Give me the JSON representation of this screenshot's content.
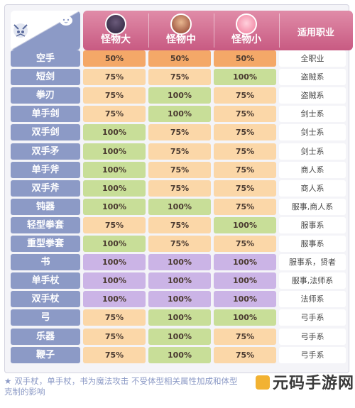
{
  "header": {
    "large_label": "怪物大",
    "medium_label": "怪物中",
    "small_label": "怪物小",
    "job_label": "适用职业"
  },
  "colors": {
    "orange": "#f4a868",
    "peach": "#fbd7a8",
    "green": "#c8de98",
    "purple": "#cbb4e6",
    "weapon_label_bg": "#8c9ac6",
    "header_bg": "#d8749a"
  },
  "icons": {
    "corner_left": "mascot-face-icon",
    "corner_right": "pink-slime-icon",
    "footnote": "star-icon"
  },
  "rows": [
    {
      "weapon": "空手",
      "v": [
        "50%",
        "50%",
        "50%"
      ],
      "c": [
        "orange",
        "orange",
        "orange"
      ],
      "job": "全职业"
    },
    {
      "weapon": "短剑",
      "v": [
        "75%",
        "75%",
        "100%"
      ],
      "c": [
        "peach",
        "peach",
        "green"
      ],
      "job": "盗贼系"
    },
    {
      "weapon": "拳刃",
      "v": [
        "75%",
        "100%",
        "75%"
      ],
      "c": [
        "peach",
        "green",
        "peach"
      ],
      "job": "盗贼系"
    },
    {
      "weapon": "单手剑",
      "v": [
        "75%",
        "100%",
        "75%"
      ],
      "c": [
        "peach",
        "green",
        "peach"
      ],
      "job": "剑士系"
    },
    {
      "weapon": "双手剑",
      "v": [
        "100%",
        "75%",
        "75%"
      ],
      "c": [
        "green",
        "peach",
        "peach"
      ],
      "job": "剑士系"
    },
    {
      "weapon": "双手矛",
      "v": [
        "100%",
        "75%",
        "75%"
      ],
      "c": [
        "green",
        "peach",
        "peach"
      ],
      "job": "剑士系"
    },
    {
      "weapon": "单手斧",
      "v": [
        "100%",
        "75%",
        "75%"
      ],
      "c": [
        "green",
        "peach",
        "peach"
      ],
      "job": "商人系"
    },
    {
      "weapon": "双手斧",
      "v": [
        "100%",
        "75%",
        "75%"
      ],
      "c": [
        "green",
        "peach",
        "peach"
      ],
      "job": "商人系"
    },
    {
      "weapon": "钝器",
      "v": [
        "100%",
        "100%",
        "75%"
      ],
      "c": [
        "green",
        "green",
        "peach"
      ],
      "job": "服事,商人系"
    },
    {
      "weapon": "轻型拳套",
      "v": [
        "75%",
        "75%",
        "100%"
      ],
      "c": [
        "peach",
        "peach",
        "green"
      ],
      "job": "服事系"
    },
    {
      "weapon": "重型拳套",
      "v": [
        "100%",
        "75%",
        "75%"
      ],
      "c": [
        "green",
        "peach",
        "peach"
      ],
      "job": "服事系"
    },
    {
      "weapon": "书",
      "v": [
        "100%",
        "100%",
        "100%"
      ],
      "c": [
        "purple",
        "purple",
        "purple"
      ],
      "job": "服事系，贤者"
    },
    {
      "weapon": "单手杖",
      "v": [
        "100%",
        "100%",
        "100%"
      ],
      "c": [
        "purple",
        "purple",
        "purple"
      ],
      "job": "服事,法师系"
    },
    {
      "weapon": "双手杖",
      "v": [
        "100%",
        "100%",
        "100%"
      ],
      "c": [
        "purple",
        "purple",
        "purple"
      ],
      "job": "法师系"
    },
    {
      "weapon": "弓",
      "v": [
        "75%",
        "100%",
        "100%"
      ],
      "c": [
        "peach",
        "green",
        "green"
      ],
      "job": "弓手系"
    },
    {
      "weapon": "乐器",
      "v": [
        "75%",
        "100%",
        "75%"
      ],
      "c": [
        "peach",
        "green",
        "peach"
      ],
      "job": "弓手系"
    },
    {
      "weapon": "鞭子",
      "v": [
        "75%",
        "100%",
        "75%"
      ],
      "c": [
        "peach",
        "green",
        "peach"
      ],
      "job": "弓手系"
    }
  ],
  "footnote": {
    "line1": "双手杖，单手杖，书为魔法攻击 不受体型相关属性加成和体型",
    "line2": "克制的影响"
  },
  "watermark": "元码手游网"
}
